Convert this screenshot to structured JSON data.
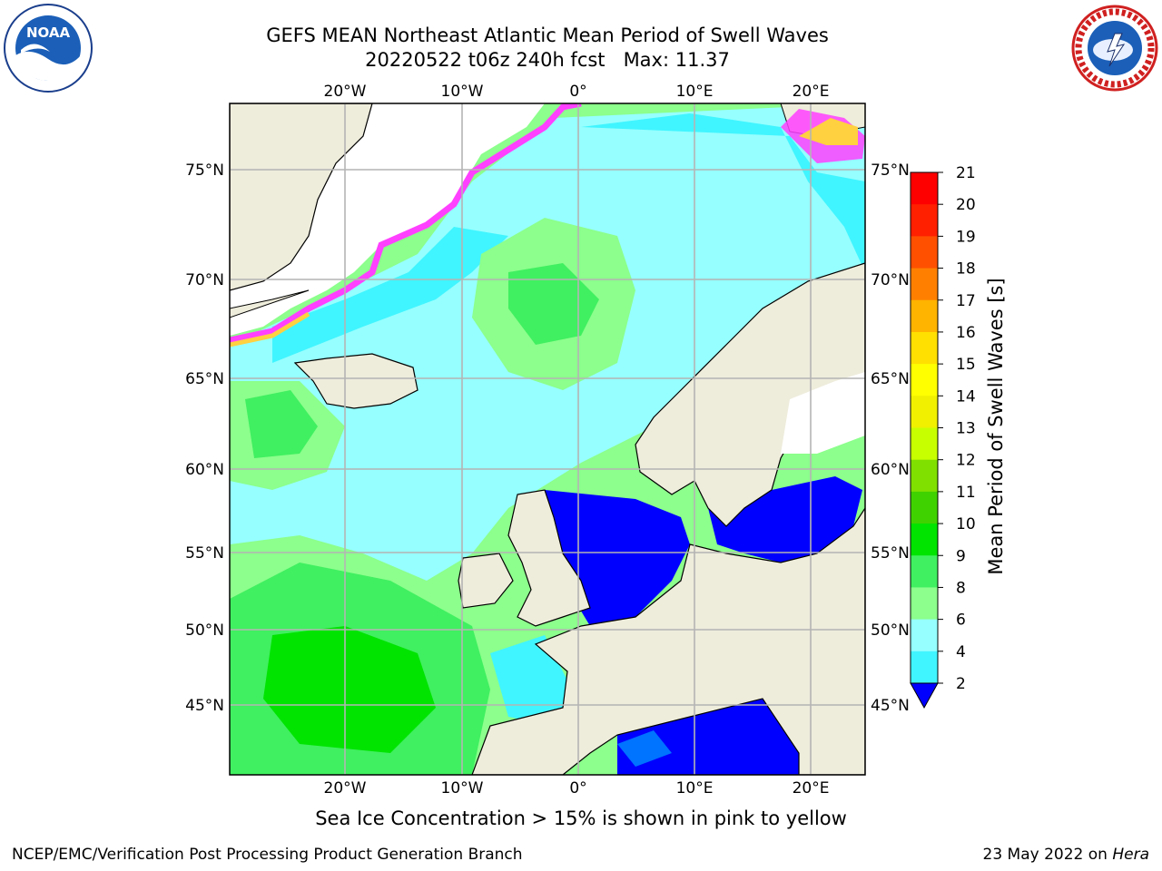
{
  "title": {
    "line1": "GEFS MEAN Northeast Atlantic Mean Period of Swell Waves",
    "line2": "20220522 t06z 240h fcst   Max: 11.37"
  },
  "logos": {
    "left": "noaa-logo",
    "left_text": "NOAA",
    "left_ring_text": "NATIONAL OCEANIC AND ATMOSPHERIC ADMINISTRATION · U.S. DEPARTMENT OF COMMERCE",
    "right": "nws-logo",
    "right_ring_text": "NATIONAL WEATHER SERVICE"
  },
  "map": {
    "lon_labels": [
      "20°W",
      "10°W",
      "0°",
      "10°E",
      "20°E"
    ],
    "lat_labels": [
      "75°N",
      "70°N",
      "65°N",
      "60°N",
      "55°N",
      "50°N",
      "45°N"
    ],
    "colors": {
      "land": "#eeecdb",
      "ice_pink": "#ff40ff",
      "ice_yellow": "#ffd040",
      "grid": "#b4b4b4"
    }
  },
  "colorbar": {
    "label": "Mean Period of Swell Waves [s]",
    "ticks": [
      "21",
      "20",
      "19",
      "18",
      "17",
      "16",
      "15",
      "14",
      "13",
      "12",
      "11",
      "10",
      "9",
      "8",
      "6",
      "4",
      "2"
    ],
    "colors": [
      "#0000ff",
      "#0073ff",
      "#00e5ff",
      "#40f5ff",
      "#96ffff",
      "#8cff8c",
      "#40f060",
      "#00e400",
      "#40d200",
      "#80e000",
      "#c8ff00",
      "#f0f000",
      "#ffff00",
      "#ffe000",
      "#ffb400",
      "#ff8000",
      "#ff5000",
      "#ff2000",
      "#ff0000"
    ]
  },
  "caption": "Sea Ice Concentration > 15% is shown in pink to yellow",
  "footer": {
    "left": "NCEP/EMC/Verification Post Processing Product Generation Branch",
    "right_date": "23 May 2022 on",
    "right_host": "Hera"
  }
}
